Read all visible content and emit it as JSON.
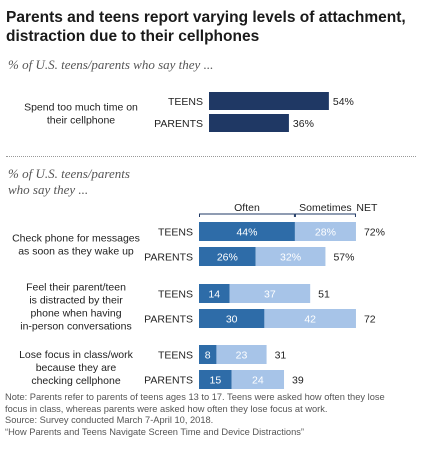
{
  "title": "Parents and teens report varying levels of attachment, distraction due to their cellphones",
  "colors": {
    "dark": "#1f3864",
    "often": "#2e6ca8",
    "sometimes": "#a7c4e8",
    "bracket": "#1f3864"
  },
  "chart_data": [
    {
      "type": "bar",
      "subtitle": "% of U.S. teens/parents who say they ...",
      "groups": [
        {
          "label": "Spend too much time on their cellphone",
          "rows": [
            {
              "name": "TEENS",
              "value": 54,
              "value_label": "54%"
            },
            {
              "name": "PARENTS",
              "value": 36,
              "value_label": "36%"
            }
          ]
        }
      ]
    },
    {
      "type": "bar",
      "stacked": true,
      "subtitle": "% of U.S. teens/parents who say they ...",
      "legend": [
        "Often",
        "Sometimes",
        "NET"
      ],
      "groups": [
        {
          "label": "Check phone for messages as soon as they wake up",
          "rows": [
            {
              "name": "TEENS",
              "often": 44,
              "sometimes": 28,
              "net": 72,
              "often_label": "44%",
              "sometimes_label": "28%",
              "net_label": "72%"
            },
            {
              "name": "PARENTS",
              "often": 26,
              "sometimes": 32,
              "net": 57,
              "often_label": "26%",
              "sometimes_label": "32%",
              "net_label": "57%"
            }
          ]
        },
        {
          "label": "Feel their parent/teen is distracted by their phone when having in-person conversations",
          "rows": [
            {
              "name": "TEENS",
              "often": 14,
              "sometimes": 37,
              "net": 51,
              "often_label": "14",
              "sometimes_label": "37",
              "net_label": "51"
            },
            {
              "name": "PARENTS",
              "often": 30,
              "sometimes": 42,
              "net": 72,
              "often_label": "30",
              "sometimes_label": "42",
              "net_label": "72"
            }
          ]
        },
        {
          "label": "Lose focus in class/work because they are checking cellphone",
          "rows": [
            {
              "name": "TEENS",
              "often": 8,
              "sometimes": 23,
              "net": 31,
              "often_label": "8",
              "sometimes_label": "23",
              "net_label": "31"
            },
            {
              "name": "PARENTS",
              "often": 15,
              "sometimes": 24,
              "net": 39,
              "often_label": "15",
              "sometimes_label": "24",
              "net_label": "39"
            }
          ]
        }
      ]
    }
  ],
  "notes": [
    "Note: Parents refer to parents of teens ages 13 to 17. Teens were asked how often they lose",
    "focus in class, whereas parents were asked how often they lose focus at work.",
    "Source: Survey conducted March 7-April 10, 2018.",
    "“How Parents and Teens Navigate Screen Time and Device Distractions”"
  ]
}
